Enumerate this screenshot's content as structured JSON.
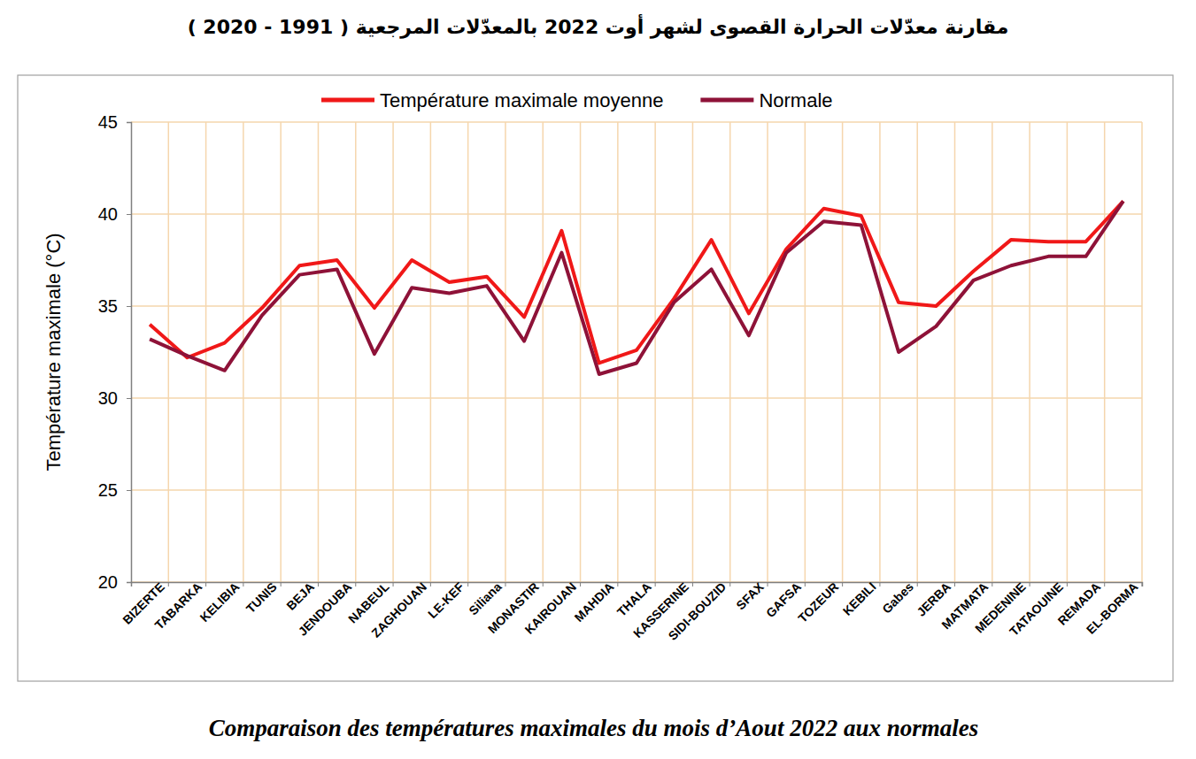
{
  "chart_data": {
    "type": "line",
    "title": "مقارنة معدّلات الحرارة القصوى لشهر أوت 2022 بالمعدّلات المرجعية ( 1991 - 2020 )",
    "subtitle": "Comparaison des températures maximales du mois d’Aout 2022 aux normales",
    "y_label": "Température maximale (°C)",
    "categories": [
      "BIZERTE",
      "TABARKA",
      "KELIBIA",
      "TUNIS",
      "BEJA",
      "JENDOUBA",
      "NABEUL",
      "ZAGHOUAN",
      "LE-KEF",
      "Siliana",
      "MONASTIR",
      "KAIROUAN",
      "MAHDIA",
      "THALA",
      "KASSERINE",
      "SIDI-BOUZID",
      "SFAX",
      "GAFSA",
      "TOZEUR",
      "KEBILI",
      "Gabes",
      "JERBA",
      "MATMATA",
      "MEDENINE",
      "TATAOUINE",
      "REMADA",
      "EL-BORMA"
    ],
    "series": [
      {
        "name": "Température maximale moyenne",
        "color": "#f01818",
        "values": [
          34.0,
          32.2,
          33.0,
          34.9,
          37.2,
          37.5,
          34.9,
          37.5,
          36.3,
          36.6,
          34.4,
          39.1,
          31.9,
          32.6,
          35.4,
          38.6,
          34.6,
          38.1,
          40.3,
          39.9,
          35.2,
          35.0,
          36.9,
          38.6,
          38.5,
          38.5,
          40.7
        ]
      },
      {
        "name": "Normale",
        "color": "#8e1238",
        "values": [
          33.2,
          32.3,
          31.5,
          34.5,
          36.7,
          37.0,
          32.4,
          36.0,
          35.7,
          36.1,
          33.1,
          37.9,
          31.3,
          31.9,
          35.2,
          37.0,
          33.4,
          37.9,
          39.6,
          39.4,
          32.5,
          33.9,
          36.4,
          37.2,
          37.7,
          37.7,
          40.7
        ]
      }
    ],
    "ylim": [
      20,
      45
    ],
    "yticks": [
      20,
      25,
      30,
      35,
      40,
      45
    ],
    "grid": true,
    "legend": "top"
  }
}
